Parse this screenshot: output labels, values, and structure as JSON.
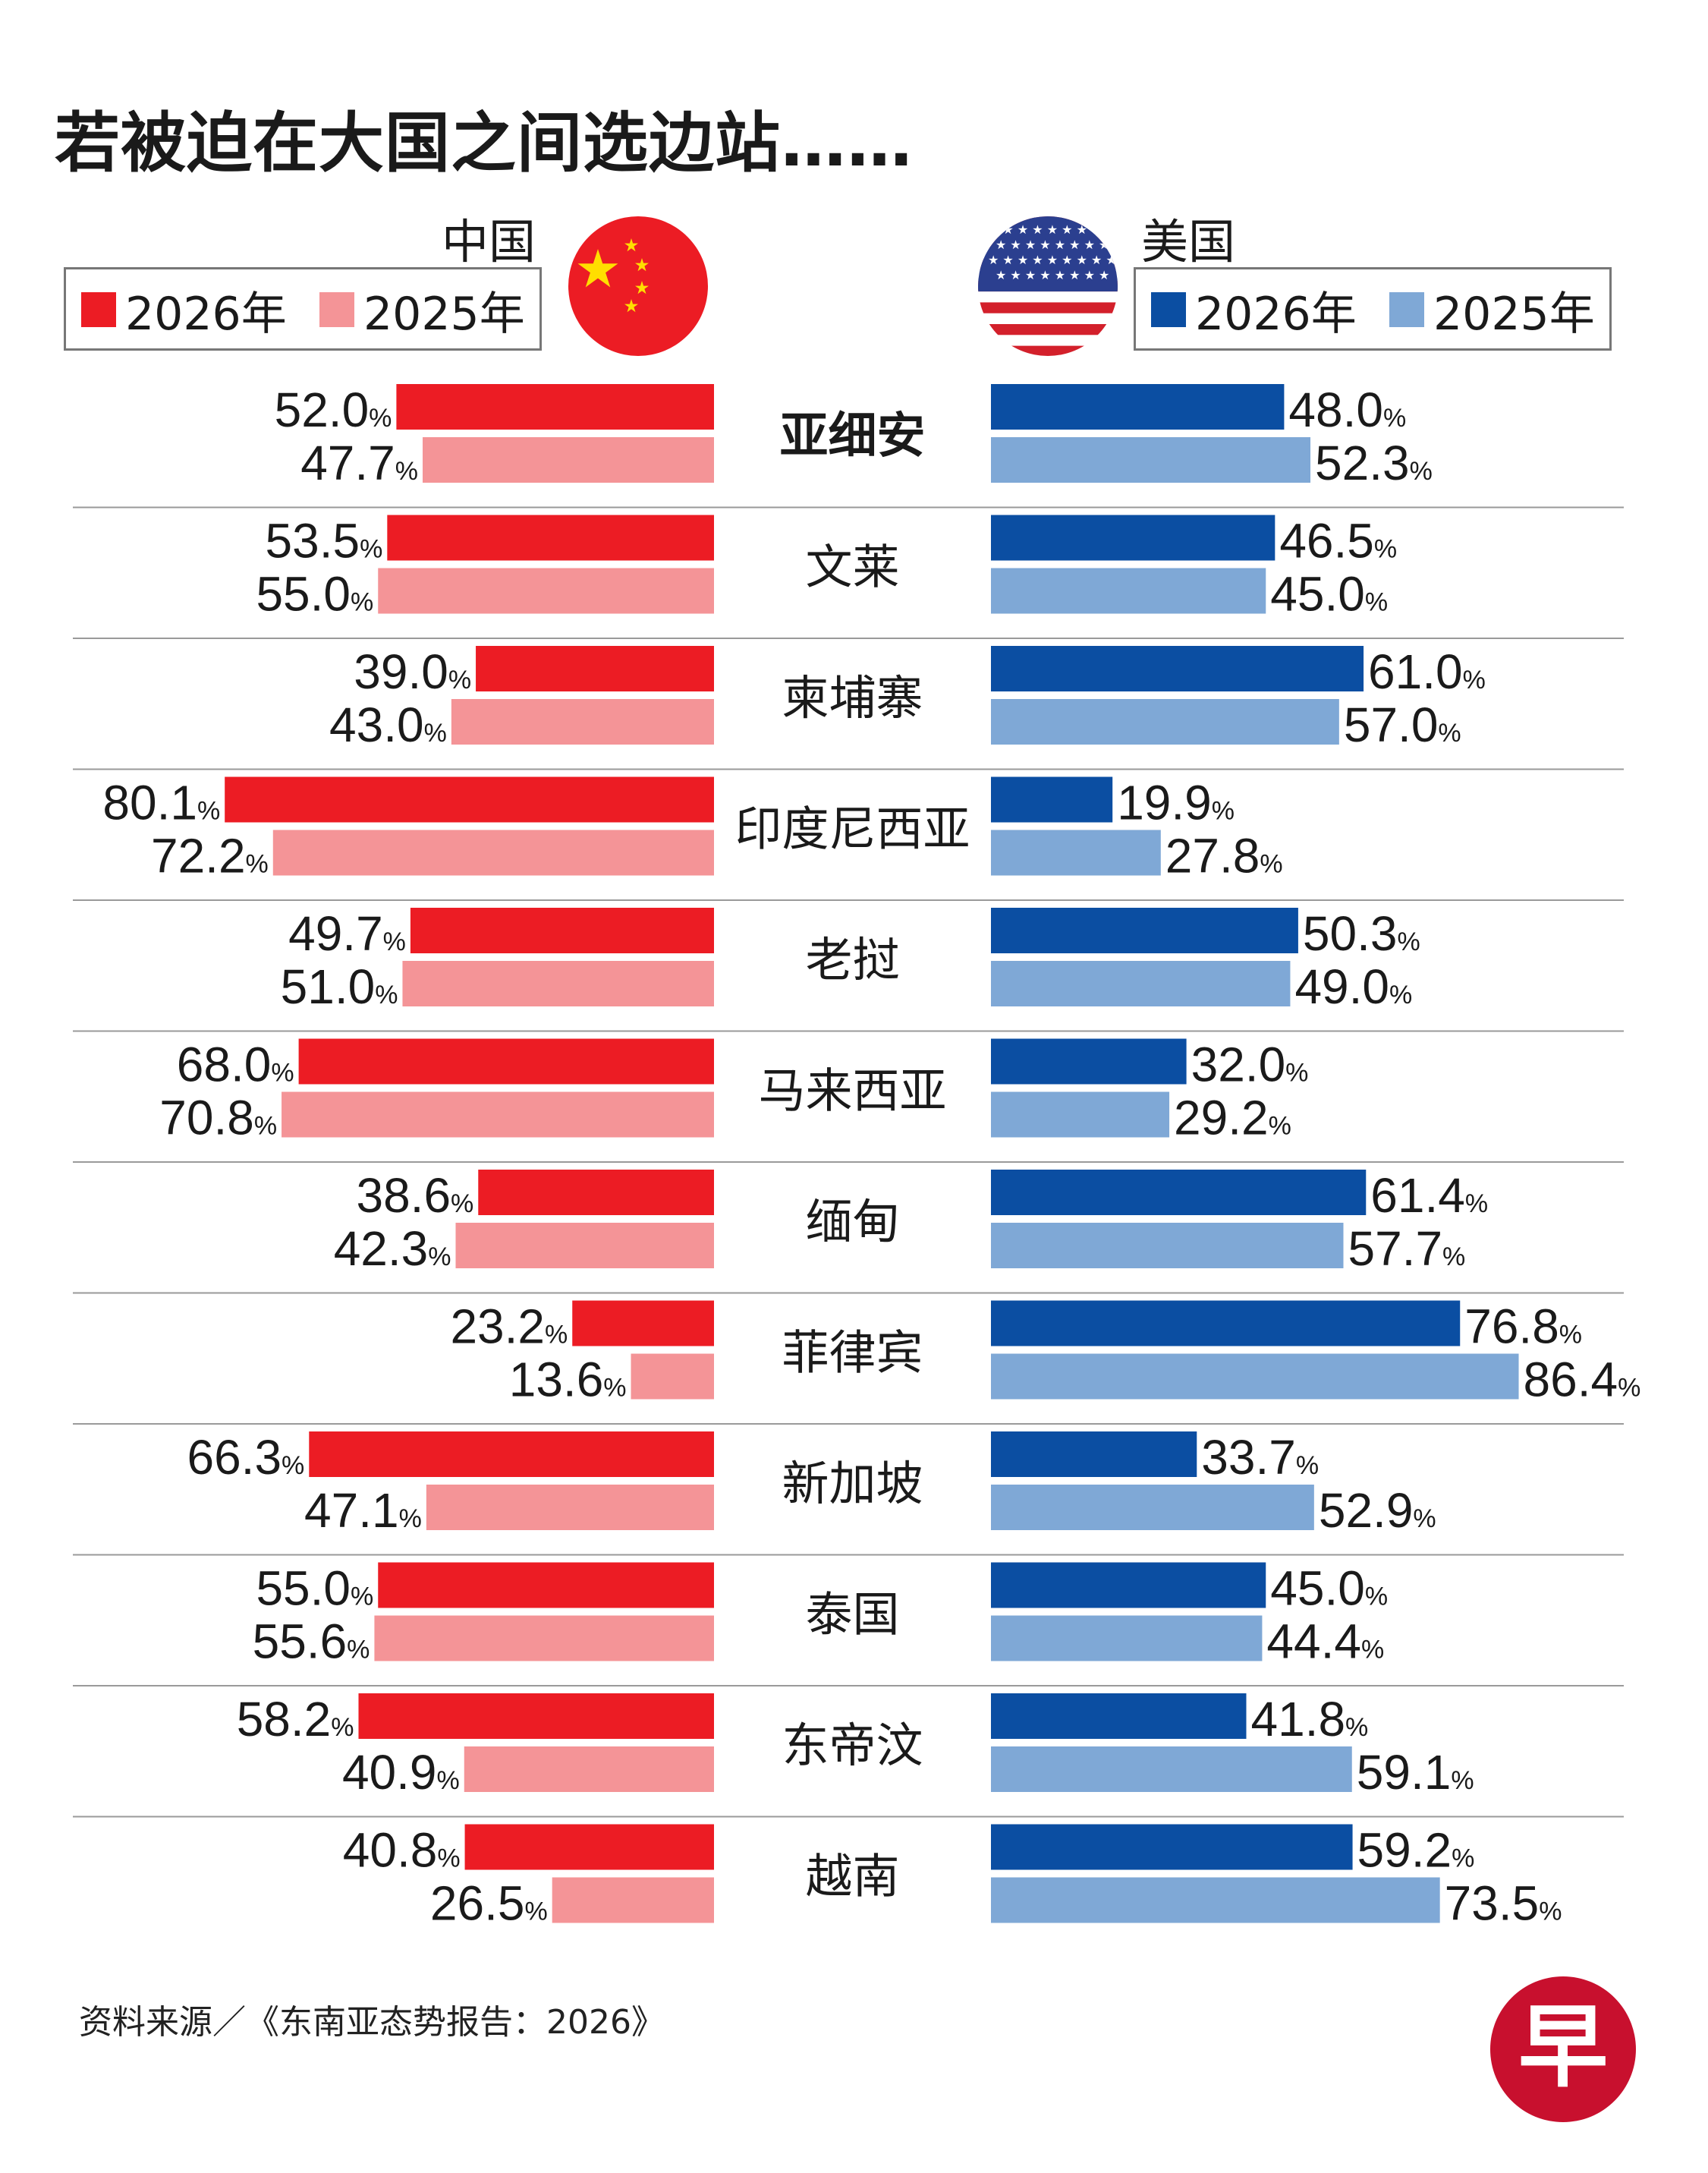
{
  "title": "若被迫在大国之间选边站……",
  "source": "资料来源／《东南亚态势报告：2026》",
  "logo_text": "早",
  "china": {
    "label": "中国",
    "flag_icon": "china-flag-icon",
    "legend": [
      {
        "label": "2026年",
        "color": "#ec1c24"
      },
      {
        "label": "2025年",
        "color": "#f49497"
      }
    ]
  },
  "usa": {
    "label": "美国",
    "flag_icon": "us-flag-icon",
    "legend": [
      {
        "label": "2026年",
        "color": "#0b4ea2"
      },
      {
        "label": "2025年",
        "color": "#7fa8d6"
      }
    ]
  },
  "chart_data": {
    "type": "bar",
    "orientation": "horizontal-diverging",
    "value_suffix": "%",
    "categories": [
      "亚细安",
      "文莱",
      "柬埔寨",
      "印度尼西亚",
      "老挝",
      "马来西亚",
      "缅甸",
      "菲律宾",
      "新加坡",
      "泰国",
      "东帝汶",
      "越南"
    ],
    "highlight_category": "亚细安",
    "series": [
      {
        "name": "中国 2026年",
        "side": "left",
        "color": "#ec1c24",
        "values": [
          52.0,
          53.5,
          39.0,
          80.1,
          49.7,
          68.0,
          38.6,
          23.2,
          66.3,
          55.0,
          58.2,
          40.8
        ]
      },
      {
        "name": "中国 2025年",
        "side": "left",
        "color": "#f49497",
        "values": [
          47.7,
          55.0,
          43.0,
          72.2,
          51.0,
          70.8,
          42.3,
          13.6,
          47.1,
          55.6,
          40.9,
          26.5
        ]
      },
      {
        "name": "美国 2026年",
        "side": "right",
        "color": "#0b4ea2",
        "values": [
          48.0,
          46.5,
          61.0,
          19.9,
          50.3,
          32.0,
          61.4,
          76.8,
          33.7,
          45.0,
          41.8,
          59.2
        ]
      },
      {
        "name": "美国 2025年",
        "side": "right",
        "color": "#7fa8d6",
        "values": [
          52.3,
          45.0,
          57.0,
          27.8,
          49.0,
          29.2,
          57.7,
          86.4,
          52.9,
          44.4,
          59.1,
          73.5
        ]
      }
    ]
  }
}
